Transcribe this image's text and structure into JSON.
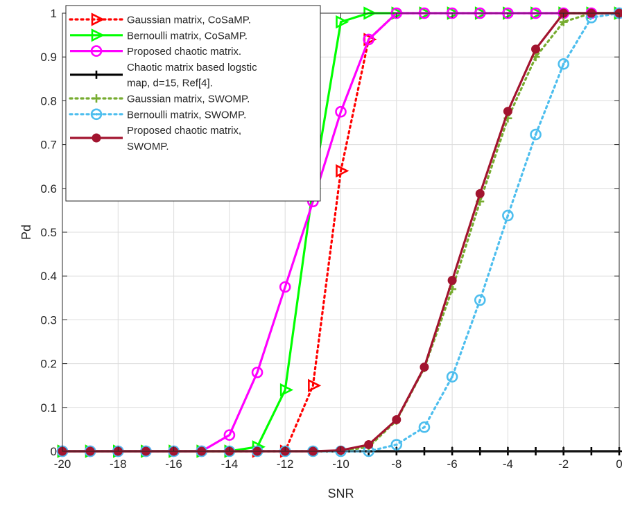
{
  "chart_data": {
    "type": "line",
    "xlabel": "SNR",
    "ylabel": "Pd",
    "xlim": [
      -20,
      0
    ],
    "ylim": [
      0,
      1
    ],
    "xticks": [
      -20,
      -18,
      -16,
      -14,
      -12,
      -10,
      -8,
      -6,
      -4,
      -2,
      0
    ],
    "yticks": [
      0,
      0.1,
      0.2,
      0.3,
      0.4,
      0.5,
      0.6,
      0.7,
      0.8,
      0.9,
      1
    ],
    "grid": true,
    "legend_position": "top-left",
    "x": [
      -20,
      -19,
      -18,
      -17,
      -16,
      -15,
      -14,
      -13,
      -12,
      -11,
      -10,
      -9,
      -8,
      -7,
      -6,
      -5,
      -4,
      -3,
      -2,
      -1,
      0
    ],
    "series": [
      {
        "name": "Gaussian matrix, CoSaMP.",
        "color": "#ff0000",
        "dash": "dotted",
        "marker": "triangle-right",
        "values": [
          0,
          0,
          0,
          0,
          0,
          0,
          0,
          0,
          0,
          0.15,
          0.64,
          0.94,
          1,
          1,
          1,
          1,
          1,
          1,
          1,
          1,
          1
        ]
      },
      {
        "name": "Bernoulli matrix, CoSaMP.",
        "color": "#00ff00",
        "dash": "solid",
        "marker": "triangle-right",
        "values": [
          0,
          0,
          0,
          0,
          0,
          0,
          0,
          0.01,
          0.14,
          0.6,
          0.98,
          1,
          1,
          1,
          1,
          1,
          1,
          1,
          1,
          1,
          1
        ]
      },
      {
        "name": "Proposed chaotic matrix.",
        "color": "#ff00ff",
        "dash": "solid",
        "marker": "circle",
        "values": [
          0,
          0,
          0,
          0,
          0,
          0,
          0.037,
          0.18,
          0.375,
          0.57,
          0.775,
          0.94,
          1,
          1,
          1,
          1,
          1,
          1,
          1,
          1,
          1
        ]
      },
      {
        "name": "Chaotic matrix based logstic map, d=15, Ref[4].",
        "legend_lines": [
          "Chaotic matrix based logstic",
          " map, d=15, Ref[4]."
        ],
        "color": "#000000",
        "dash": "solid",
        "marker": "plus",
        "values": [
          0,
          0,
          0,
          0,
          0,
          0,
          0,
          0,
          0,
          0,
          0,
          0,
          0,
          0,
          0,
          0,
          0,
          0,
          0,
          0,
          0
        ]
      },
      {
        "name": "Gaussian matrix, SWOMP.",
        "color": "#77ac30",
        "dash": "dotted",
        "marker": "plus",
        "values": [
          0,
          0,
          0,
          0,
          0,
          0,
          0,
          0,
          0,
          0,
          0,
          0.01,
          0.07,
          0.19,
          0.37,
          0.57,
          0.76,
          0.9,
          0.98,
          1,
          1
        ]
      },
      {
        "name": "Bernoulli matrix, SWOMP.",
        "color": "#4dbeee",
        "dash": "dotted",
        "marker": "circle-dot",
        "values": [
          0,
          0,
          0,
          0,
          0,
          0,
          0,
          0,
          0,
          0,
          0,
          0,
          0.015,
          0.055,
          0.17,
          0.345,
          0.538,
          0.723,
          0.884,
          0.99,
          1
        ]
      },
      {
        "name": "Proposed chaotic matrix, SWOMP.",
        "legend_lines": [
          "Proposed chaotic matrix,",
          "SWOMP."
        ],
        "color": "#a2142f",
        "dash": "solid",
        "marker": "filled-circle",
        "values": [
          0,
          0,
          0,
          0,
          0,
          0,
          0,
          0,
          0,
          0,
          0.002,
          0.015,
          0.072,
          0.192,
          0.39,
          0.588,
          0.776,
          0.918,
          1,
          1,
          1
        ]
      }
    ]
  }
}
